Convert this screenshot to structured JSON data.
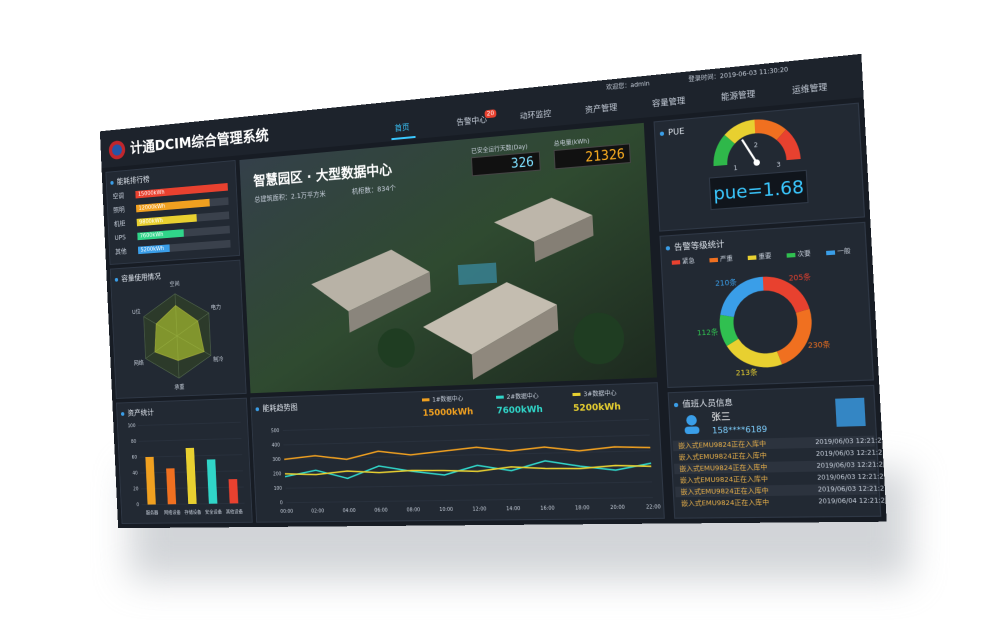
{
  "header": {
    "title": "计通DCIM综合管理系统",
    "user": "欢迎您：admin",
    "login_time": "登录时间：2019-06-03 11:30:20",
    "nav": [
      "首页",
      "告警中心",
      "动环监控",
      "资产管理",
      "容量管理",
      "能源管理",
      "运维管理"
    ],
    "alarm_badge": "20"
  },
  "energy_rank": {
    "title": "能耗排行榜",
    "items": [
      {
        "name": "空调",
        "value": 15000,
        "value_label": "15000kWh",
        "color": "#e8412f"
      },
      {
        "name": "照明",
        "value": 12000,
        "value_label": "12000kWh",
        "color": "#f0a020"
      },
      {
        "name": "机柜",
        "value": 9800,
        "value_label": "9800kWh",
        "color": "#e8d030"
      },
      {
        "name": "UPS",
        "value": 7600,
        "value_label": "7600kWh",
        "color": "#30d58a"
      },
      {
        "name": "其他",
        "value": 5200,
        "value_label": "5200kWh",
        "color": "#3a9ee8"
      }
    ]
  },
  "capacity": {
    "title": "容量使用情况",
    "axes": [
      "空间",
      "电力",
      "制冷",
      "承重",
      "网络",
      "U位"
    ],
    "values": [
      72,
      65,
      80,
      58,
      70,
      62
    ],
    "rlim": [
      0,
      100
    ]
  },
  "asset_stats": {
    "title": "资产统计",
    "categories": [
      "服务器",
      "网络设备",
      "存储设备",
      "安全设备",
      "其他设备"
    ],
    "values": [
      60,
      45,
      70,
      55,
      30
    ],
    "colors": [
      "#f0a020",
      "#f07020",
      "#e8d030",
      "#30d5c8",
      "#e8412f"
    ],
    "ylim": [
      0,
      100
    ],
    "yticks": [
      0,
      20,
      40,
      60,
      80,
      100
    ]
  },
  "campus": {
    "title": "智慧园区 · 大型数据中心",
    "area": "总建筑面积：2.1万平方米",
    "racks": "机柜数：834个",
    "safe_days_label": "已安全运行天数(Day)",
    "safe_days": "326",
    "power_label": "总电量(kWh)",
    "power": "21326"
  },
  "energy_trend": {
    "title": "能耗趋势图",
    "x": [
      "00:00",
      "02:00",
      "04:00",
      "06:00",
      "08:00",
      "10:00",
      "12:00",
      "14:00",
      "16:00",
      "18:00",
      "20:00",
      "22:00"
    ],
    "ylim": [
      0,
      500
    ],
    "yticks": [
      0,
      100,
      200,
      300,
      400,
      500
    ],
    "series": [
      {
        "name": "1#数据中心",
        "total": "15000kWh",
        "color": "#f0a020",
        "values": [
          300,
          320,
          290,
          340,
          310,
          330,
          350,
          320,
          340,
          310,
          330,
          320
        ]
      },
      {
        "name": "2#数据中心",
        "total": "7600kWh",
        "color": "#30d5c8",
        "values": [
          180,
          220,
          160,
          240,
          200,
          170,
          230,
          190,
          250,
          210,
          180,
          220
        ]
      },
      {
        "name": "3#数据中心",
        "total": "5200kWh",
        "color": "#e8d030",
        "values": [
          200,
          190,
          210,
          195,
          205,
          200,
          190,
          215,
          200,
          195,
          210,
          200
        ]
      }
    ]
  },
  "pue": {
    "title": "PUE",
    "value": 1.68,
    "value_label": "pue=1.68",
    "range": [
      1,
      3
    ],
    "ticks": [
      1,
      2,
      3
    ]
  },
  "alarms": {
    "title": "告警等级统计",
    "series": [
      {
        "name": "紧急",
        "color": "#e8412f",
        "value": 205,
        "value_label": "205条"
      },
      {
        "name": "严重",
        "color": "#f07020",
        "value": 230,
        "value_label": "230条"
      },
      {
        "name": "重要",
        "color": "#e8d030",
        "value": 213,
        "value_label": "213条"
      },
      {
        "name": "次要",
        "color": "#30c050",
        "value": 112,
        "value_label": "112条"
      },
      {
        "name": "一般",
        "color": "#3a9ee8",
        "value": 210,
        "value_label": "210条"
      }
    ]
  },
  "duty": {
    "title": "值班人员信息",
    "name": "张三",
    "phone": "158****6189",
    "logs": [
      {
        "text": "嵌入式EMU9824正在入库中",
        "time": "2019/06/03 12:21:22"
      },
      {
        "text": "嵌入式EMU9824正在入库中",
        "time": "2019/06/03 12:21:22"
      },
      {
        "text": "嵌入式EMU9824正在入库中",
        "time": "2019/06/03 12:21:22"
      },
      {
        "text": "嵌入式EMU9824正在入库中",
        "time": "2019/06/03 12:21:22"
      },
      {
        "text": "嵌入式EMU9824正在入库中",
        "time": "2019/06/03 12:21:22"
      },
      {
        "text": "嵌入式EMU9824正在入库中",
        "time": "2019/06/04 12:21:22"
      }
    ]
  }
}
